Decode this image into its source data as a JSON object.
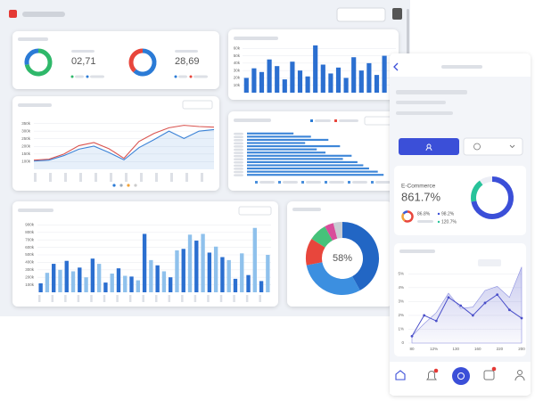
{
  "dashboard": {
    "kpis": [
      {
        "value": "02,71",
        "ring": [
          72,
          28
        ],
        "colors": [
          "#2fb86a",
          "#2b7bd6"
        ]
      },
      {
        "value": "28,69",
        "ring": [
          62,
          38
        ],
        "colors": [
          "#2b7bd6",
          "#e8463c"
        ]
      }
    ],
    "column_chart": {
      "type": "bar",
      "color": "#2b6fd0",
      "ylim": [
        0,
        70
      ],
      "yticks": [
        {
          "value": 10,
          "label": "10k"
        },
        {
          "value": 20,
          "label": "20k"
        },
        {
          "value": 30,
          "label": "30k"
        },
        {
          "value": 40,
          "label": "40k"
        },
        {
          "value": 50,
          "label": "50k"
        },
        {
          "value": 60,
          "label": "60k"
        }
      ],
      "values": [
        20,
        33,
        28,
        45,
        36,
        18,
        42,
        30,
        22,
        64,
        38,
        26,
        34,
        20,
        48,
        30,
        40,
        24,
        50,
        28
      ]
    },
    "line_chart": {
      "type": "line",
      "ylim": [
        50,
        400
      ],
      "yticks": [
        {
          "value": 100,
          "label": "100k"
        },
        {
          "value": 150,
          "label": "150k"
        },
        {
          "value": 200,
          "label": "200k"
        },
        {
          "value": 250,
          "label": "250k"
        },
        {
          "value": 300,
          "label": "300k"
        },
        {
          "value": 350,
          "label": "350k"
        }
      ],
      "series": [
        {
          "color": "#d9534f",
          "values": [
            110,
            116,
            150,
            205,
            225,
            185,
            122,
            232,
            285,
            322,
            338,
            330,
            326
          ]
        },
        {
          "color": "#3b82d6",
          "values": [
            104,
            110,
            140,
            182,
            202,
            160,
            112,
            192,
            244,
            300,
            252,
            300,
            310
          ]
        }
      ]
    },
    "hbar_chart": {
      "type": "bar",
      "color": "#3d86d8",
      "xlim": [
        0,
        50
      ],
      "values": [
        16,
        22,
        28,
        20,
        32,
        24,
        27,
        36,
        33,
        38,
        40,
        42,
        45,
        47
      ]
    },
    "bottom_bars": {
      "type": "bar",
      "colors": [
        "#2b6fd0",
        "#8fc1ec"
      ],
      "ylim": [
        0,
        1000
      ],
      "yticks": [
        {
          "value": 100,
          "label": "100k"
        },
        {
          "value": 200,
          "label": "200k"
        },
        {
          "value": 300,
          "label": "300k"
        },
        {
          "value": 400,
          "label": "400k"
        },
        {
          "value": 500,
          "label": "500k"
        },
        {
          "value": 600,
          "label": "600k"
        },
        {
          "value": 700,
          "label": "700k"
        },
        {
          "value": 800,
          "label": "800k"
        },
        {
          "value": 900,
          "label": "900k"
        }
      ],
      "values": [
        120,
        260,
        380,
        300,
        420,
        280,
        330,
        200,
        450,
        380,
        130,
        250,
        320,
        220,
        210,
        160,
        780,
        430,
        360,
        280,
        200,
        560,
        580,
        770,
        690,
        780,
        530,
        610,
        470,
        430,
        180,
        520,
        230,
        860,
        150,
        500
      ]
    },
    "donut": {
      "type": "pie",
      "center_label": "58%",
      "values": [
        42,
        30,
        12,
        8,
        4,
        4
      ],
      "colors": [
        "#2266c4",
        "#3c8fe0",
        "#e8463c",
        "#46c27a",
        "#d94d9b",
        "#c9ccd3"
      ]
    }
  },
  "phone": {
    "card": {
      "label": "E-Commerce",
      "value": "861.7%",
      "stats": [
        "86.8%",
        "98.2%",
        "120.7%"
      ],
      "ring": [
        60,
        25,
        15
      ],
      "ring_colors": [
        "#e8463c",
        "#f2a33a",
        "#3b5bd6"
      ],
      "progress": [
        72,
        18
      ],
      "progress_colors": [
        "#3b4fd8",
        "#27c39a"
      ]
    },
    "chart": {
      "type": "line",
      "ylim": [
        0,
        5.6
      ],
      "yticks": [
        0,
        {
          "value": 1,
          "label": "1%"
        },
        {
          "value": 2,
          "label": "2%"
        },
        {
          "value": 3,
          "label": "3%"
        },
        {
          "value": 4,
          "label": "4%"
        },
        {
          "value": 5,
          "label": "5%"
        }
      ],
      "x_labels": [
        "80",
        "12%",
        "130",
        "160",
        "220",
        "200"
      ],
      "area": [
        0.5,
        1.4,
        2.2,
        3.6,
        2.5,
        2.6,
        3.8,
        4.1,
        3.3,
        5.5
      ],
      "line": [
        0.5,
        2.0,
        1.6,
        3.3,
        2.7,
        2.0,
        2.9,
        3.5,
        2.4,
        1.8
      ],
      "color": "#4a4fc9"
    }
  }
}
